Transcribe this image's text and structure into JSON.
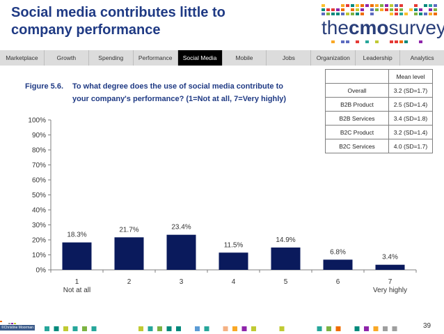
{
  "slide": {
    "title_line1": "Social media contributes little to",
    "title_line2": "company performance",
    "page_number": "39",
    "copyright": "©Christine Moorman"
  },
  "logo": {
    "prefix": "the",
    "bold": "cmo",
    "suffix": "survey"
  },
  "nav": {
    "tabs": [
      "Marketplace",
      "Growth",
      "Spending",
      "Performance",
      "Social Media",
      "Mobile",
      "Jobs",
      "Organization",
      "Leadership",
      "Analytics"
    ],
    "active": "Social Media"
  },
  "figure": {
    "label": "Figure 5.6.",
    "question_line1": "To what degree does the use of social media contribute to",
    "question_line2": "your company's performance? (1=Not at all, 7=Very highly)"
  },
  "mean_table": {
    "header": "Mean level",
    "rows": [
      {
        "category": "Overall",
        "value": "3.2 (SD=1.7)"
      },
      {
        "category": "B2B Product",
        "value": "2.5 (SD=1.4)"
      },
      {
        "category": "B2B Services",
        "value": "3.4 (SD=1.8)"
      },
      {
        "category": "B2C Product",
        "value": "3.2 (SD=1.4)"
      },
      {
        "category": "B2C Services",
        "value": "4.0 (SD=1.7)"
      }
    ]
  },
  "colors": {
    "bar": "#0a1a5c",
    "title": "#1f3a84",
    "nav_active": "#000000",
    "nav_bg": "#dcdcdc"
  },
  "chart_data": {
    "type": "bar",
    "categories": [
      "1",
      "2",
      "3",
      "4",
      "5",
      "6",
      "7"
    ],
    "category_sublabels": [
      "Not at all",
      "",
      "",
      "",
      "",
      "",
      "Very highly"
    ],
    "values": [
      18.3,
      21.7,
      23.4,
      11.5,
      14.9,
      6.8,
      3.4
    ],
    "value_labels": [
      "18.3%",
      "21.7%",
      "23.4%",
      "11.5%",
      "14.9%",
      "6.8%",
      "3.4%"
    ],
    "ylim": [
      0,
      100
    ],
    "yticks": [
      0,
      10,
      20,
      30,
      40,
      50,
      60,
      70,
      80,
      90,
      100
    ],
    "ytick_labels": [
      "0%",
      "10%",
      "20%",
      "30%",
      "40%",
      "50%",
      "60%",
      "70%",
      "80%",
      "90%",
      "100%"
    ],
    "grid": false,
    "legend": "none"
  }
}
